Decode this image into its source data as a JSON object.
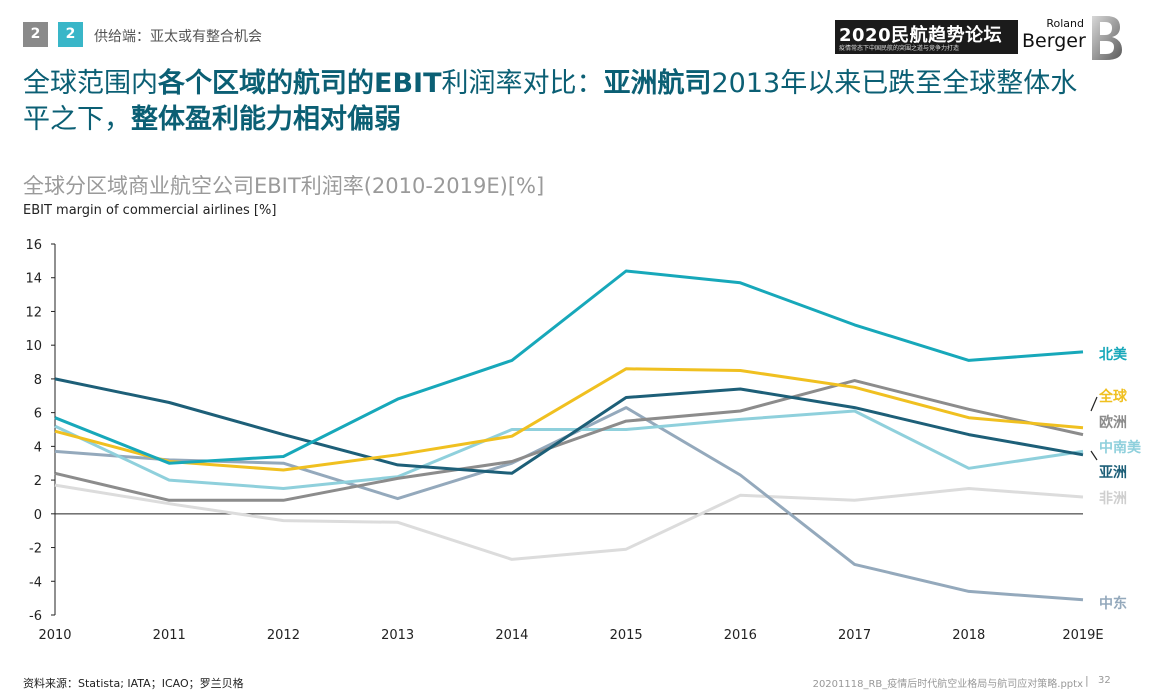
{
  "header": {
    "badge1": "2",
    "badge2": "2",
    "section": "供给端：亚太或有整合机会",
    "banner_title": "2020民航趋势论坛",
    "banner_subtitle": "疫情常态下中国民航的突围之道与竞争力打造",
    "logo_roland": "Roland",
    "logo_berger": "Berger"
  },
  "headline": {
    "p1": "全球范围内",
    "p2": "各个区域的航司的EBIT",
    "p3": "利润率对比：",
    "p4": "亚洲航司",
    "p5": "2013年以来已跌至全球整体水平之下，",
    "p6": "整体盈利能力相对偏弱"
  },
  "colors": {
    "north_america": "#17a8ba",
    "global": "#f0c020",
    "europe": "#8c8c8c",
    "latin_america": "#8fd0dc",
    "asia": "#1d5f78",
    "africa": "#dcdcdc",
    "middle_east": "#94a9bc"
  },
  "chart_data": {
    "type": "line",
    "title": "全球分区域商业航空公司EBIT利润率(2010-2019E)[%]",
    "ylabel": "EBIT margin of commercial airlines [%]",
    "xlabel": "",
    "categories": [
      "2010",
      "2011",
      "2012",
      "2013",
      "2014",
      "2015",
      "2016",
      "2017",
      "2018",
      "2019E"
    ],
    "ylim": [
      -6,
      16
    ],
    "yticks": [
      16,
      14,
      12,
      10,
      8,
      6,
      4,
      2,
      0,
      -2,
      -4,
      -6
    ],
    "grid": false,
    "series": [
      {
        "key": "north_america",
        "name": "北美",
        "values": [
          5.7,
          3.0,
          3.4,
          6.8,
          9.1,
          14.4,
          13.7,
          11.2,
          9.1,
          9.6
        ]
      },
      {
        "key": "global",
        "name": "全球",
        "values": [
          4.9,
          3.1,
          2.6,
          3.5,
          4.6,
          8.6,
          8.5,
          7.5,
          5.7,
          5.1
        ]
      },
      {
        "key": "europe",
        "name": "欧洲",
        "values": [
          2.4,
          0.8,
          0.8,
          2.1,
          3.1,
          5.5,
          6.1,
          7.9,
          6.2,
          4.7
        ]
      },
      {
        "key": "latin_america",
        "name": "中南美",
        "values": [
          5.2,
          2.0,
          1.5,
          2.2,
          5.0,
          5.0,
          5.6,
          6.1,
          2.7,
          3.7
        ]
      },
      {
        "key": "asia",
        "name": "亚洲",
        "values": [
          8.0,
          6.6,
          4.7,
          2.9,
          2.4,
          6.9,
          7.4,
          6.3,
          4.7,
          3.5
        ]
      },
      {
        "key": "africa",
        "name": "非洲",
        "values": [
          1.7,
          0.6,
          -0.4,
          -0.5,
          -2.7,
          -2.1,
          1.1,
          0.8,
          1.5,
          1.0
        ]
      },
      {
        "key": "middle_east",
        "name": "中东",
        "values": [
          3.7,
          3.2,
          3.0,
          0.9,
          3.0,
          6.3,
          2.3,
          -3.0,
          -4.6,
          -5.1
        ]
      }
    ]
  },
  "footer": {
    "source": "资料来源：Statista; IATA；ICAO；罗兰贝格",
    "file": "20201118_RB_疫情后时代航空业格局与航司应对策略.pptx",
    "separator": "|",
    "page": "32"
  }
}
